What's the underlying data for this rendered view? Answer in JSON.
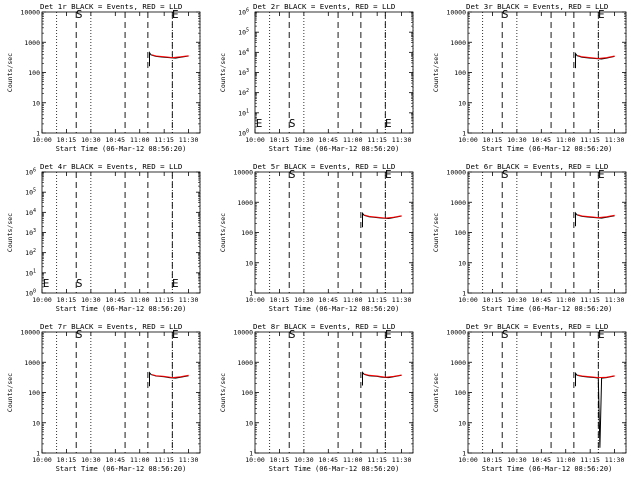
{
  "chart_data": [
    {
      "type": "line",
      "title": "Det 1r BLACK = Events, RED = LLD",
      "xlabel": "Start Time (06-Mar-12 08:56:20)",
      "ylabel": "Counts/sec",
      "xticks": [
        "10:00",
        "10:15",
        "10:30",
        "10:45",
        "11:00",
        "11:15",
        "11:30"
      ],
      "xlim": [
        "10:00",
        "11:37"
      ],
      "yscale": "log",
      "ylim": [
        1,
        10000
      ],
      "yticks": [
        "1",
        "10",
        "100",
        "1000",
        "10000"
      ],
      "markers": [
        {
          "label": "S",
          "time": "10:21"
        },
        {
          "label": "E",
          "time": "11:20"
        }
      ],
      "dotted_lines": [
        "10:09",
        "10:30",
        "11:20",
        "11:37"
      ],
      "dashed_lines": [
        "10:21",
        "10:51",
        "11:05",
        "11:20"
      ],
      "series": [
        {
          "name": "Events",
          "color": "#000000",
          "x": [
            "11:06",
            "11:06",
            "11:07",
            "11:10",
            "11:15",
            "11:18",
            "11:22",
            "11:25",
            "11:30"
          ],
          "y": [
            160,
            450,
            380,
            340,
            320,
            310,
            300,
            320,
            350
          ]
        },
        {
          "name": "LLD",
          "color": "#ff0000",
          "x": [
            "11:07",
            "11:10",
            "11:15",
            "11:20",
            "11:25",
            "11:30"
          ],
          "y": [
            390,
            350,
            330,
            310,
            330,
            360
          ]
        }
      ]
    },
    {
      "type": "line",
      "title": "Det 2r BLACK = Events, RED = LLD",
      "xlabel": "Start Time (06-Mar-12 08:56:20)",
      "ylabel": "Counts/sec",
      "xticks": [
        "10:00",
        "10:15",
        "10:30",
        "10:45",
        "11:00",
        "11:15",
        "11:30"
      ],
      "xlim": [
        "10:00",
        "11:37"
      ],
      "yscale": "log",
      "ylim": [
        1,
        1000000
      ],
      "yticks": [
        "10^0",
        "10^1",
        "10^2",
        "10^3",
        "10^4",
        "10^5",
        "10^6"
      ],
      "markers": [
        {
          "label": "S",
          "time": "10:21"
        },
        {
          "label": "E",
          "time": "11:20"
        }
      ],
      "dotted_lines": [
        "10:09",
        "10:30",
        "11:20",
        "11:37"
      ],
      "dashed_lines": [
        "10:21",
        "10:51",
        "11:05",
        "11:20"
      ],
      "series": []
    },
    {
      "type": "line",
      "title": "Det 3r BLACK = Events, RED = LLD",
      "xlabel": "Start Time (06-Mar-12 08:56:20)",
      "ylabel": "Counts/sec",
      "xticks": [
        "10:00",
        "10:15",
        "10:30",
        "10:45",
        "11:00",
        "11:15",
        "11:30"
      ],
      "xlim": [
        "10:00",
        "11:37"
      ],
      "yscale": "log",
      "ylim": [
        1,
        10000
      ],
      "yticks": [
        "1",
        "10",
        "100",
        "1000",
        "10000"
      ],
      "markers": [
        {
          "label": "S",
          "time": "10:21"
        },
        {
          "label": "E",
          "time": "11:20"
        }
      ],
      "dotted_lines": [
        "10:09",
        "10:30",
        "11:20",
        "11:37"
      ],
      "dashed_lines": [
        "10:21",
        "10:51",
        "11:05",
        "11:20"
      ],
      "series": [
        {
          "name": "Events",
          "color": "#000000",
          "x": [
            "11:06",
            "11:06",
            "11:07",
            "11:10",
            "11:15",
            "11:18",
            "11:22",
            "11:25",
            "11:30"
          ],
          "y": [
            140,
            420,
            360,
            320,
            300,
            290,
            280,
            300,
            340
          ]
        },
        {
          "name": "LLD",
          "color": "#ff0000",
          "x": [
            "11:07",
            "11:10",
            "11:15",
            "11:20",
            "11:25",
            "11:30"
          ],
          "y": [
            370,
            330,
            310,
            290,
            310,
            350
          ]
        }
      ]
    },
    {
      "type": "line",
      "title": "Det 4r BLACK = Events, RED = LLD",
      "xlabel": "Start Time (06-Mar-12 08:56:20)",
      "ylabel": "Counts/sec",
      "xticks": [
        "10:00",
        "10:15",
        "10:30",
        "10:45",
        "11:00",
        "11:15",
        "11:30"
      ],
      "xlim": [
        "10:00",
        "11:37"
      ],
      "yscale": "log",
      "ylim": [
        1,
        1000000
      ],
      "yticks": [
        "10^0",
        "10^1",
        "10^2",
        "10^3",
        "10^4",
        "10^5",
        "10^6"
      ],
      "markers": [
        {
          "label": "S",
          "time": "10:21"
        },
        {
          "label": "E",
          "time": "11:20"
        }
      ],
      "dotted_lines": [
        "10:09",
        "10:30",
        "11:20",
        "11:37"
      ],
      "dashed_lines": [
        "10:21",
        "10:51",
        "11:05",
        "11:20"
      ],
      "series": []
    },
    {
      "type": "line",
      "title": "Det 5r BLACK = Events, RED = LLD",
      "xlabel": "Start Time (06-Mar-12 08:56:20)",
      "ylabel": "Counts/sec",
      "xticks": [
        "10:00",
        "10:15",
        "10:30",
        "10:45",
        "11:00",
        "11:15",
        "11:30"
      ],
      "xlim": [
        "10:00",
        "11:37"
      ],
      "yscale": "log",
      "ylim": [
        1,
        10000
      ],
      "yticks": [
        "1",
        "10",
        "100",
        "1000",
        "10000"
      ],
      "markers": [
        {
          "label": "S",
          "time": "10:21"
        },
        {
          "label": "E",
          "time": "11:20"
        }
      ],
      "dotted_lines": [
        "10:09",
        "10:30",
        "11:20",
        "11:37"
      ],
      "dashed_lines": [
        "10:21",
        "10:51",
        "11:05",
        "11:20"
      ],
      "series": [
        {
          "name": "Events",
          "color": "#000000",
          "x": [
            "11:06",
            "11:06",
            "11:07",
            "11:10",
            "11:15",
            "11:18",
            "11:22",
            "11:25",
            "11:30"
          ],
          "y": [
            150,
            430,
            370,
            330,
            310,
            300,
            290,
            310,
            350
          ]
        },
        {
          "name": "LLD",
          "color": "#ff0000",
          "x": [
            "11:07",
            "11:10",
            "11:15",
            "11:20",
            "11:25",
            "11:30"
          ],
          "y": [
            380,
            340,
            320,
            300,
            320,
            360
          ]
        }
      ]
    },
    {
      "type": "line",
      "title": "Det 6r BLACK = Events, RED = LLD",
      "xlabel": "Start Time (06-Mar-12 08:56:20)",
      "ylabel": "Counts/sec",
      "xticks": [
        "10:00",
        "10:15",
        "10:30",
        "10:45",
        "11:00",
        "11:15",
        "11:30"
      ],
      "xlim": [
        "10:00",
        "11:37"
      ],
      "yscale": "log",
      "ylim": [
        1,
        10000
      ],
      "yticks": [
        "1",
        "10",
        "100",
        "1000",
        "10000"
      ],
      "markers": [
        {
          "label": "S",
          "time": "10:21"
        },
        {
          "label": "E",
          "time": "11:20"
        }
      ],
      "dotted_lines": [
        "10:09",
        "10:30",
        "11:20",
        "11:37"
      ],
      "dashed_lines": [
        "10:21",
        "10:51",
        "11:05",
        "11:20"
      ],
      "series": [
        {
          "name": "Events",
          "color": "#000000",
          "x": [
            "11:06",
            "11:06",
            "11:07",
            "11:10",
            "11:15",
            "11:18",
            "11:22",
            "11:25",
            "11:30"
          ],
          "y": [
            160,
            440,
            380,
            340,
            320,
            310,
            300,
            320,
            360
          ]
        },
        {
          "name": "LLD",
          "color": "#ff0000",
          "x": [
            "11:07",
            "11:10",
            "11:15",
            "11:20",
            "11:25",
            "11:30"
          ],
          "y": [
            390,
            350,
            330,
            310,
            330,
            370
          ]
        }
      ]
    },
    {
      "type": "line",
      "title": "Det 7r BLACK = Events, RED = LLD",
      "xlabel": "Start Time (06-Mar-12 08:56:20)",
      "ylabel": "Counts/sec",
      "xticks": [
        "10:00",
        "10:15",
        "10:30",
        "10:45",
        "11:00",
        "11:15",
        "11:30"
      ],
      "xlim": [
        "10:00",
        "11:37"
      ],
      "yscale": "log",
      "ylim": [
        1,
        10000
      ],
      "yticks": [
        "1",
        "10",
        "100",
        "1000",
        "10000"
      ],
      "markers": [
        {
          "label": "S",
          "time": "10:21"
        },
        {
          "label": "E",
          "time": "11:20"
        }
      ],
      "dotted_lines": [
        "10:09",
        "10:30",
        "11:20",
        "11:37"
      ],
      "dashed_lines": [
        "10:21",
        "10:51",
        "11:05",
        "11:20"
      ],
      "series": [
        {
          "name": "Events",
          "color": "#000000",
          "x": [
            "11:06",
            "11:06",
            "11:07",
            "11:10",
            "11:15",
            "11:18",
            "11:22",
            "11:25",
            "11:30"
          ],
          "y": [
            160,
            450,
            390,
            350,
            330,
            310,
            300,
            320,
            360
          ]
        },
        {
          "name": "LLD",
          "color": "#ff0000",
          "x": [
            "11:07",
            "11:10",
            "11:15",
            "11:20",
            "11:25",
            "11:30"
          ],
          "y": [
            400,
            360,
            340,
            310,
            330,
            370
          ]
        }
      ]
    },
    {
      "type": "line",
      "title": "Det 8r BLACK = Events, RED = LLD",
      "xlabel": "Start Time (06-Mar-12 08:56:20)",
      "ylabel": "Counts/sec",
      "xticks": [
        "10:00",
        "10:15",
        "10:30",
        "10:45",
        "11:00",
        "11:15",
        "11:30"
      ],
      "xlim": [
        "10:00",
        "11:37"
      ],
      "yscale": "log",
      "ylim": [
        1,
        10000
      ],
      "yticks": [
        "1",
        "10",
        "100",
        "1000",
        "10000"
      ],
      "markers": [
        {
          "label": "S",
          "time": "10:21"
        },
        {
          "label": "E",
          "time": "11:20"
        }
      ],
      "dotted_lines": [
        "10:09",
        "10:30",
        "11:20",
        "11:37"
      ],
      "dashed_lines": [
        "10:21",
        "10:51",
        "11:05",
        "11:20"
      ],
      "series": [
        {
          "name": "Events",
          "color": "#000000",
          "x": [
            "11:06",
            "11:06",
            "11:07",
            "11:10",
            "11:15",
            "11:18",
            "11:22",
            "11:25",
            "11:30"
          ],
          "y": [
            170,
            460,
            400,
            360,
            340,
            320,
            310,
            330,
            370
          ]
        },
        {
          "name": "LLD",
          "color": "#ff0000",
          "x": [
            "11:07",
            "11:10",
            "11:15",
            "11:20",
            "11:25",
            "11:30"
          ],
          "y": [
            410,
            370,
            350,
            320,
            340,
            380
          ]
        }
      ]
    },
    {
      "type": "line",
      "title": "Det 9r BLACK = Events, RED = LLD",
      "xlabel": "Start Time (06-Mar-12 08:56:20)",
      "ylabel": "Counts/sec",
      "xticks": [
        "10:00",
        "10:15",
        "10:30",
        "10:45",
        "11:00",
        "11:15",
        "11:30"
      ],
      "xlim": [
        "10:00",
        "11:37"
      ],
      "yscale": "log",
      "ylim": [
        1,
        10000
      ],
      "yticks": [
        "1",
        "10",
        "100",
        "1000",
        "10000"
      ],
      "markers": [
        {
          "label": "S",
          "time": "10:21"
        },
        {
          "label": "E",
          "time": "11:20"
        }
      ],
      "dotted_lines": [
        "10:09",
        "10:30",
        "11:20",
        "11:37"
      ],
      "dashed_lines": [
        "10:21",
        "10:51",
        "11:05",
        "11:20"
      ],
      "series": [
        {
          "name": "Events",
          "color": "#000000",
          "x": [
            "11:06",
            "11:06",
            "11:07",
            "11:10",
            "11:15",
            "11:18",
            "11:20",
            "11:21",
            "11:22",
            "11:25",
            "11:30"
          ],
          "y": [
            160,
            430,
            370,
            340,
            320,
            310,
            300,
            1.5,
            300,
            310,
            350
          ]
        },
        {
          "name": "LLD",
          "color": "#ff0000",
          "x": [
            "11:07",
            "11:10",
            "11:15",
            "11:20",
            "11:25",
            "11:30"
          ],
          "y": [
            380,
            350,
            330,
            310,
            320,
            360
          ]
        }
      ]
    }
  ]
}
